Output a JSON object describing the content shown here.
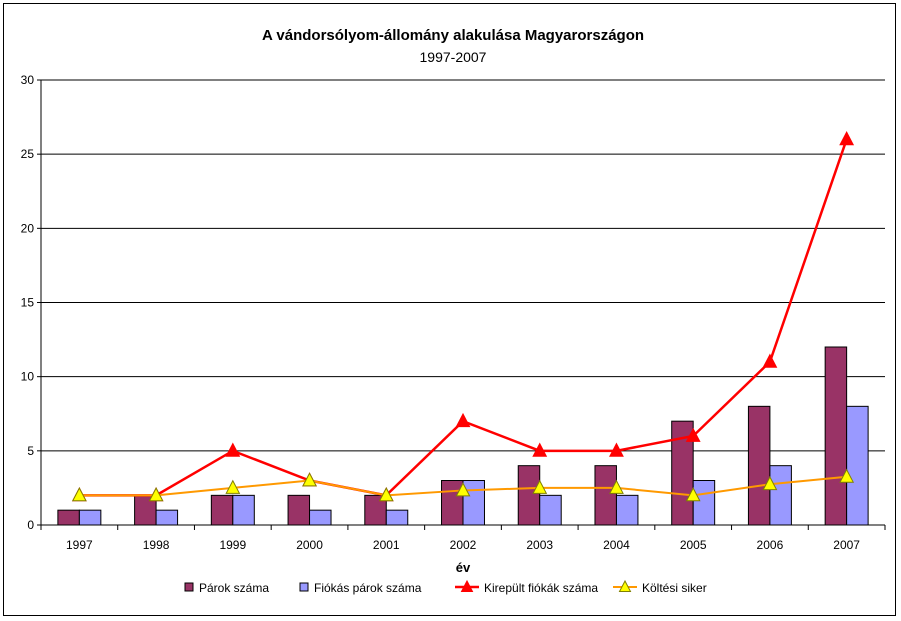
{
  "chart_data": {
    "type": "bar",
    "title": "A vándorsólyom-állomány alakulása Magyarországon",
    "subtitle": "1997-2007",
    "xlabel": "év",
    "ylabel": "",
    "ylim": [
      0,
      30
    ],
    "yticks": [
      "0",
      "5",
      "10",
      "15",
      "20",
      "25",
      "30"
    ],
    "grid": true,
    "legend": "bottom",
    "categories": [
      "1997",
      "1998",
      "1999",
      "2000",
      "2001",
      "2002",
      "2003",
      "2004",
      "2005",
      "2006",
      "2007"
    ],
    "series": [
      {
        "name": "Párok száma",
        "kind": "bar",
        "color": "#993366",
        "values": [
          1,
          2,
          2,
          2,
          2,
          3,
          4,
          4,
          7,
          8,
          12
        ]
      },
      {
        "name": "Fiókás párok száma",
        "kind": "bar",
        "color": "#9999ff",
        "values": [
          1,
          1,
          2,
          1,
          1,
          3,
          2,
          2,
          3,
          4,
          8
        ]
      },
      {
        "name": "Kirepült fiókák száma",
        "kind": "line",
        "marker": "triangle",
        "color": "#ff0000",
        "values": [
          2,
          2,
          5,
          3,
          2,
          7,
          5,
          5,
          6,
          11,
          26
        ]
      },
      {
        "name": "Költési siker",
        "kind": "line",
        "marker": "triangle",
        "color": "#ff9900",
        "marker_color": "#ffff00",
        "values": [
          2,
          2,
          2.5,
          3,
          2,
          2.33,
          2.5,
          2.5,
          2,
          2.75,
          3.25
        ]
      }
    ]
  }
}
